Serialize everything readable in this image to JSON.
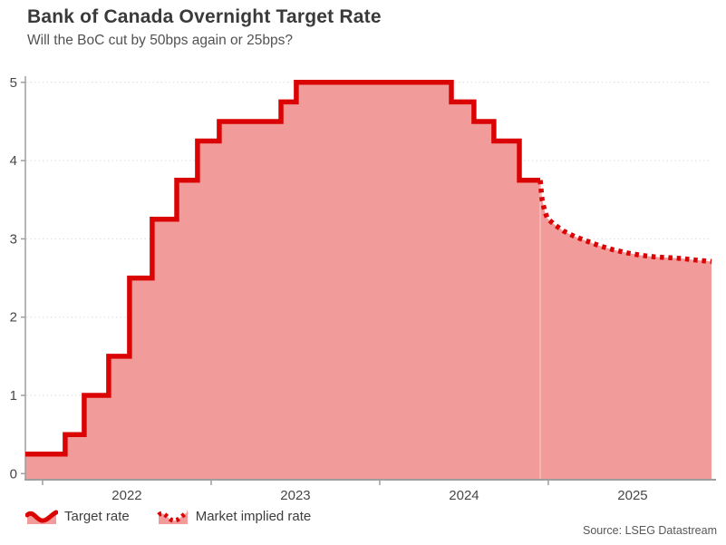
{
  "header": {
    "title": "Bank of Canada Overnight Target Rate",
    "subtitle": "Will the BoC cut by 50bps again or 25bps?"
  },
  "legend": {
    "items": [
      {
        "label": "Target rate",
        "style": "solid"
      },
      {
        "label": "Market implied rate",
        "style": "dotted"
      }
    ]
  },
  "source": "Source: LSEG Datastream",
  "colors": {
    "line": "#db0405",
    "fill": "#f19b9b",
    "seam": "#f8bdbd",
    "axis": "#9e9e9e",
    "grid": "#dedede",
    "tick_text": "#474747"
  },
  "chart_data": {
    "type": "area",
    "title": "Bank of Canada Overnight Target Rate",
    "subtitle": "Will the BoC cut by 50bps again or 25bps?",
    "ylabel": "",
    "xlabel": "",
    "ylim": [
      0,
      5
    ],
    "yticks": [
      0,
      1,
      2,
      3,
      4,
      5
    ],
    "x_range": [
      2021.898,
      2025.968
    ],
    "xtick_years": [
      2022,
      2023,
      2024,
      2025
    ],
    "xtick_labels": [
      "2022",
      "2023",
      "2024",
      "2025"
    ],
    "grid": "horizontal-dotted",
    "legend_position": "bottom-left",
    "source": "Source: LSEG Datastream",
    "series": [
      {
        "name": "Target rate",
        "type": "step",
        "line": "solid",
        "points": [
          [
            2021.898,
            0.25
          ],
          [
            2022.134,
            0.5
          ],
          [
            2022.247,
            1.0
          ],
          [
            2022.392,
            1.5
          ],
          [
            2022.516,
            2.5
          ],
          [
            2022.65,
            3.25
          ],
          [
            2022.796,
            3.75
          ],
          [
            2022.919,
            4.25
          ],
          [
            2023.048,
            4.5
          ],
          [
            2023.414,
            4.75
          ],
          [
            2023.505,
            5.0
          ],
          [
            2024.425,
            4.75
          ],
          [
            2024.559,
            4.5
          ],
          [
            2024.677,
            4.25
          ],
          [
            2024.828,
            3.75
          ]
        ],
        "end_x": 2024.952
      },
      {
        "name": "Market implied rate",
        "type": "line",
        "line": "dotted",
        "points": [
          [
            2024.952,
            3.75
          ],
          [
            2024.963,
            3.5
          ],
          [
            2024.979,
            3.35
          ],
          [
            2024.995,
            3.26
          ],
          [
            2025.038,
            3.18
          ],
          [
            2025.091,
            3.1
          ],
          [
            2025.156,
            3.03
          ],
          [
            2025.231,
            2.97
          ],
          [
            2025.306,
            2.91
          ],
          [
            2025.387,
            2.86
          ],
          [
            2025.468,
            2.82
          ],
          [
            2025.548,
            2.79
          ],
          [
            2025.629,
            2.77
          ],
          [
            2025.71,
            2.76
          ],
          [
            2025.79,
            2.75
          ],
          [
            2025.871,
            2.73
          ],
          [
            2025.968,
            2.71
          ]
        ]
      }
    ]
  }
}
